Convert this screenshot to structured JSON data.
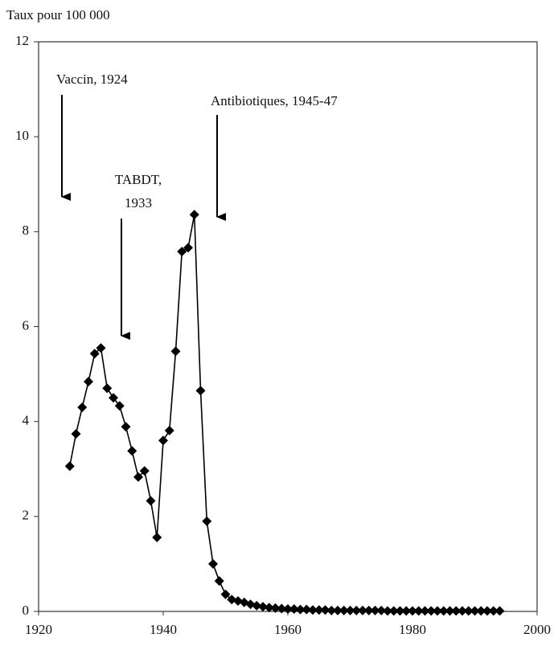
{
  "chart_data": {
    "type": "line",
    "y_axis_label": "Taux pour 100 000",
    "x": [
      1925,
      1926,
      1927,
      1928,
      1929,
      1930,
      1931,
      1932,
      1933,
      1934,
      1935,
      1936,
      1937,
      1938,
      1939,
      1940,
      1941,
      1942,
      1943,
      1944,
      1945,
      1946,
      1947,
      1948,
      1949,
      1950,
      1951,
      1952,
      1953,
      1954,
      1955,
      1956,
      1957,
      1958,
      1959,
      1960,
      1961,
      1962,
      1963,
      1964,
      1965,
      1966,
      1967,
      1968,
      1969,
      1970,
      1971,
      1972,
      1973,
      1974,
      1975,
      1976,
      1977,
      1978,
      1979,
      1980,
      1981,
      1982,
      1983,
      1984,
      1985,
      1986,
      1987,
      1988,
      1989,
      1990,
      1991,
      1992,
      1993,
      1994
    ],
    "series": [
      {
        "color": "#000000",
        "values": [
          3.06,
          3.74,
          4.3,
          4.84,
          5.43,
          5.55,
          4.7,
          4.5,
          4.33,
          3.89,
          3.38,
          2.83,
          2.96,
          2.33,
          1.56,
          3.6,
          3.81,
          5.48,
          7.58,
          7.66,
          8.36,
          4.65,
          1.9,
          1.0,
          0.64,
          0.36,
          0.25,
          0.22,
          0.19,
          0.15,
          0.12,
          0.1,
          0.08,
          0.07,
          0.06,
          0.05,
          0.05,
          0.04,
          0.04,
          0.03,
          0.03,
          0.03,
          0.02,
          0.02,
          0.02,
          0.02,
          0.02,
          0.02,
          0.02,
          0.02,
          0.02,
          0.01,
          0.01,
          0.01,
          0.01,
          0.01,
          0.01,
          0.01,
          0.01,
          0.01,
          0.01,
          0.01,
          0.01,
          0.01,
          0.01,
          0.01,
          0.01,
          0.01,
          0.01,
          0.01
        ]
      }
    ],
    "xlim": [
      1920,
      2000
    ],
    "xticks": [
      1920,
      1940,
      1960,
      1980,
      2000
    ],
    "ylim": [
      0,
      12
    ],
    "yticks": [
      0,
      2,
      4,
      6,
      8,
      10,
      12
    ],
    "annotations": [
      {
        "lines": [
          "Vaccin, 1924"
        ]
      },
      {
        "lines": [
          "TABDT,",
          "1933"
        ]
      },
      {
        "lines": [
          "Antibiotiques, 1945-47"
        ]
      }
    ]
  }
}
